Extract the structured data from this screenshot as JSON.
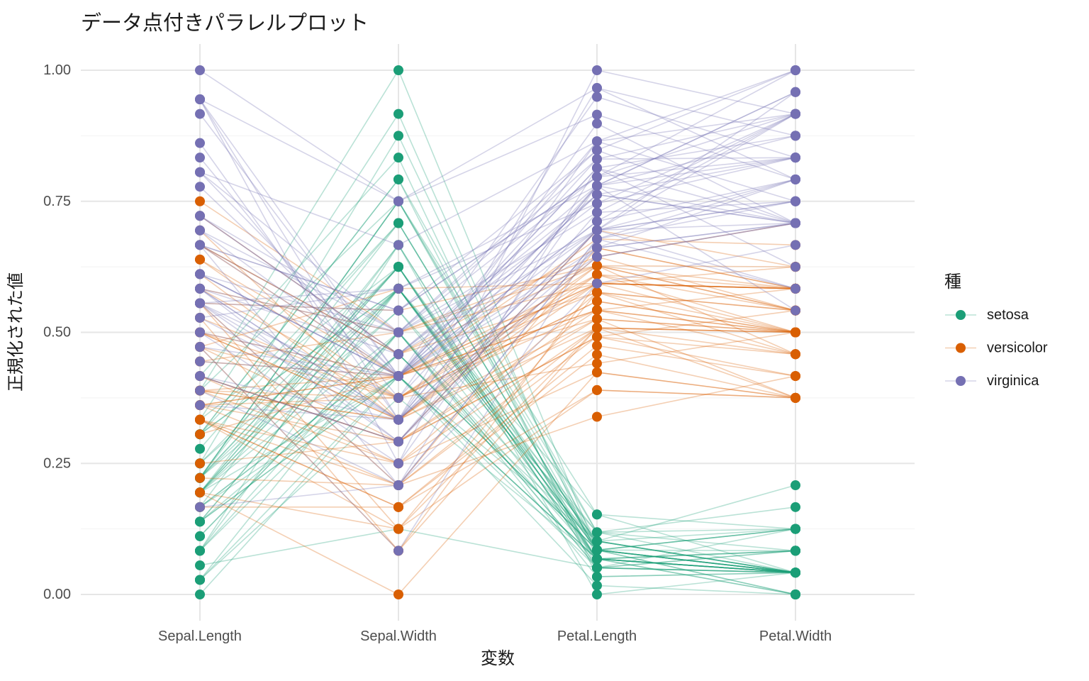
{
  "chart_data": {
    "type": "line",
    "subtype": "parallel-coordinates",
    "title": "データ点付きパラレルプロット",
    "xlabel": "変数",
    "ylabel": "正規化された値",
    "legend_title": "種",
    "legend_position": "right",
    "grid": true,
    "categories": [
      "Sepal.Length",
      "Sepal.Width",
      "Petal.Length",
      "Petal.Width"
    ],
    "yticks": [
      0,
      0.25,
      0.5,
      0.75,
      1
    ],
    "ytick_labels": [
      "0.00",
      "0.25",
      "0.50",
      "0.75",
      "1.00"
    ],
    "ylim": [
      0,
      1
    ],
    "normalization": "min-max per variable",
    "variable_ranges": {
      "Sepal.Length": [
        4.3,
        7.9
      ],
      "Sepal.Width": [
        2.0,
        4.4
      ],
      "Petal.Length": [
        1.0,
        6.9
      ],
      "Petal.Width": [
        0.1,
        2.5
      ]
    },
    "line_alpha": 0.3,
    "series": [
      {
        "name": "setosa",
        "color": "#1B9E77",
        "rows": [
          [
            5.1,
            3.5,
            1.4,
            0.2
          ],
          [
            4.9,
            3.0,
            1.4,
            0.2
          ],
          [
            4.7,
            3.2,
            1.3,
            0.2
          ],
          [
            4.6,
            3.1,
            1.5,
            0.2
          ],
          [
            5.0,
            3.6,
            1.4,
            0.2
          ],
          [
            5.4,
            3.9,
            1.7,
            0.4
          ],
          [
            4.6,
            3.4,
            1.4,
            0.3
          ],
          [
            5.0,
            3.4,
            1.5,
            0.2
          ],
          [
            4.4,
            2.9,
            1.4,
            0.2
          ],
          [
            4.9,
            3.1,
            1.5,
            0.1
          ],
          [
            5.4,
            3.7,
            1.5,
            0.2
          ],
          [
            4.8,
            3.4,
            1.6,
            0.2
          ],
          [
            4.8,
            3.0,
            1.4,
            0.1
          ],
          [
            4.3,
            3.0,
            1.1,
            0.1
          ],
          [
            5.8,
            4.0,
            1.2,
            0.2
          ],
          [
            5.7,
            4.4,
            1.5,
            0.4
          ],
          [
            5.4,
            3.9,
            1.3,
            0.4
          ],
          [
            5.1,
            3.5,
            1.4,
            0.3
          ],
          [
            5.7,
            3.8,
            1.7,
            0.3
          ],
          [
            5.1,
            3.8,
            1.5,
            0.3
          ],
          [
            5.4,
            3.4,
            1.7,
            0.2
          ],
          [
            5.1,
            3.7,
            1.5,
            0.4
          ],
          [
            4.6,
            3.6,
            1.0,
            0.2
          ],
          [
            5.1,
            3.3,
            1.7,
            0.5
          ],
          [
            4.8,
            3.4,
            1.9,
            0.2
          ],
          [
            5.0,
            3.0,
            1.6,
            0.2
          ],
          [
            5.0,
            3.4,
            1.6,
            0.4
          ],
          [
            5.2,
            3.5,
            1.5,
            0.2
          ],
          [
            5.2,
            3.4,
            1.4,
            0.2
          ],
          [
            4.7,
            3.2,
            1.6,
            0.2
          ],
          [
            4.8,
            3.1,
            1.6,
            0.2
          ],
          [
            5.4,
            3.4,
            1.5,
            0.4
          ],
          [
            5.2,
            4.1,
            1.5,
            0.1
          ],
          [
            5.5,
            4.2,
            1.4,
            0.2
          ],
          [
            4.9,
            3.1,
            1.5,
            0.2
          ],
          [
            5.0,
            3.2,
            1.2,
            0.2
          ],
          [
            5.5,
            3.5,
            1.3,
            0.2
          ],
          [
            4.9,
            3.6,
            1.4,
            0.1
          ],
          [
            4.4,
            3.0,
            1.3,
            0.2
          ],
          [
            5.1,
            3.4,
            1.5,
            0.2
          ],
          [
            5.0,
            3.5,
            1.3,
            0.3
          ],
          [
            4.5,
            2.3,
            1.3,
            0.3
          ],
          [
            4.4,
            3.2,
            1.3,
            0.2
          ],
          [
            5.0,
            3.5,
            1.6,
            0.6
          ],
          [
            5.1,
            3.8,
            1.9,
            0.4
          ],
          [
            4.8,
            3.0,
            1.4,
            0.3
          ],
          [
            5.1,
            3.8,
            1.6,
            0.2
          ],
          [
            4.6,
            3.2,
            1.4,
            0.2
          ],
          [
            5.3,
            3.7,
            1.5,
            0.2
          ],
          [
            5.0,
            3.3,
            1.4,
            0.2
          ]
        ]
      },
      {
        "name": "versicolor",
        "color": "#D95F02",
        "rows": [
          [
            7.0,
            3.2,
            4.7,
            1.4
          ],
          [
            6.4,
            3.2,
            4.5,
            1.5
          ],
          [
            6.9,
            3.1,
            4.9,
            1.5
          ],
          [
            5.5,
            2.3,
            4.0,
            1.3
          ],
          [
            6.5,
            2.8,
            4.6,
            1.5
          ],
          [
            5.7,
            2.8,
            4.5,
            1.3
          ],
          [
            6.3,
            3.3,
            4.7,
            1.6
          ],
          [
            4.9,
            2.4,
            3.3,
            1.0
          ],
          [
            6.6,
            2.9,
            4.6,
            1.3
          ],
          [
            5.2,
            2.7,
            3.9,
            1.4
          ],
          [
            5.0,
            2.0,
            3.5,
            1.0
          ],
          [
            5.9,
            3.0,
            4.2,
            1.5
          ],
          [
            6.0,
            2.2,
            4.0,
            1.0
          ],
          [
            6.1,
            2.9,
            4.7,
            1.4
          ],
          [
            5.6,
            2.9,
            3.6,
            1.3
          ],
          [
            6.7,
            3.1,
            4.4,
            1.4
          ],
          [
            5.6,
            3.0,
            4.5,
            1.5
          ],
          [
            5.8,
            2.7,
            4.1,
            1.0
          ],
          [
            6.2,
            2.2,
            4.5,
            1.5
          ],
          [
            5.6,
            2.5,
            3.9,
            1.1
          ],
          [
            5.9,
            3.2,
            4.8,
            1.8
          ],
          [
            6.1,
            2.8,
            4.0,
            1.3
          ],
          [
            6.3,
            2.5,
            4.9,
            1.5
          ],
          [
            6.1,
            2.8,
            4.7,
            1.2
          ],
          [
            6.4,
            2.9,
            4.3,
            1.3
          ],
          [
            6.6,
            3.0,
            4.4,
            1.4
          ],
          [
            6.8,
            2.8,
            4.8,
            1.4
          ],
          [
            6.7,
            3.0,
            5.0,
            1.7
          ],
          [
            6.0,
            2.9,
            4.5,
            1.5
          ],
          [
            5.7,
            2.6,
            3.5,
            1.0
          ],
          [
            5.5,
            2.4,
            3.8,
            1.1
          ],
          [
            5.5,
            2.4,
            3.7,
            1.0
          ],
          [
            5.8,
            2.7,
            3.9,
            1.2
          ],
          [
            6.0,
            2.7,
            5.1,
            1.6
          ],
          [
            5.4,
            3.0,
            4.5,
            1.5
          ],
          [
            6.0,
            3.4,
            4.5,
            1.6
          ],
          [
            6.7,
            3.1,
            4.7,
            1.5
          ],
          [
            6.3,
            2.3,
            4.4,
            1.3
          ],
          [
            5.6,
            3.0,
            4.1,
            1.3
          ],
          [
            5.5,
            2.5,
            4.0,
            1.3
          ],
          [
            5.5,
            2.6,
            4.4,
            1.2
          ],
          [
            6.1,
            3.0,
            4.6,
            1.4
          ],
          [
            5.8,
            2.6,
            4.0,
            1.2
          ],
          [
            5.0,
            2.3,
            3.3,
            1.0
          ],
          [
            5.6,
            2.7,
            4.2,
            1.3
          ],
          [
            5.7,
            3.0,
            4.2,
            1.2
          ],
          [
            5.7,
            2.9,
            4.2,
            1.3
          ],
          [
            6.2,
            2.9,
            4.3,
            1.3
          ],
          [
            5.1,
            2.5,
            3.0,
            1.1
          ],
          [
            5.7,
            2.8,
            4.1,
            1.3
          ]
        ]
      },
      {
        "name": "virginica",
        "color": "#7570B3",
        "rows": [
          [
            6.3,
            3.3,
            6.0,
            2.5
          ],
          [
            5.8,
            2.7,
            5.1,
            1.9
          ],
          [
            7.1,
            3.0,
            5.9,
            2.1
          ],
          [
            6.3,
            2.9,
            5.6,
            1.8
          ],
          [
            6.5,
            3.0,
            5.8,
            2.2
          ],
          [
            7.6,
            3.0,
            6.6,
            2.1
          ],
          [
            4.9,
            2.5,
            4.5,
            1.7
          ],
          [
            7.3,
            2.9,
            6.3,
            1.8
          ],
          [
            6.7,
            2.5,
            5.8,
            1.8
          ],
          [
            7.2,
            3.6,
            6.1,
            2.5
          ],
          [
            6.5,
            3.2,
            5.1,
            2.0
          ],
          [
            6.4,
            2.7,
            5.3,
            1.9
          ],
          [
            6.8,
            3.0,
            5.5,
            2.1
          ],
          [
            5.7,
            2.5,
            5.0,
            2.0
          ],
          [
            5.8,
            2.8,
            5.1,
            2.4
          ],
          [
            6.4,
            3.2,
            5.3,
            2.3
          ],
          [
            6.5,
            3.0,
            5.5,
            1.8
          ],
          [
            7.7,
            3.8,
            6.7,
            2.2
          ],
          [
            7.7,
            2.6,
            6.9,
            2.3
          ],
          [
            6.0,
            2.2,
            5.0,
            1.5
          ],
          [
            6.9,
            3.2,
            5.7,
            2.3
          ],
          [
            5.6,
            2.8,
            4.9,
            2.0
          ],
          [
            7.7,
            2.8,
            6.7,
            2.0
          ],
          [
            6.3,
            2.7,
            4.9,
            1.8
          ],
          [
            6.7,
            3.3,
            5.7,
            2.1
          ],
          [
            7.2,
            3.2,
            6.0,
            1.8
          ],
          [
            6.2,
            2.8,
            4.8,
            1.8
          ],
          [
            6.1,
            3.0,
            4.9,
            1.8
          ],
          [
            6.4,
            2.8,
            5.6,
            2.1
          ],
          [
            7.2,
            3.0,
            5.8,
            1.6
          ],
          [
            7.4,
            2.8,
            6.1,
            1.9
          ],
          [
            7.9,
            3.8,
            6.4,
            2.0
          ],
          [
            6.4,
            2.8,
            5.6,
            2.2
          ],
          [
            6.3,
            2.8,
            5.1,
            1.5
          ],
          [
            6.1,
            2.6,
            5.6,
            1.4
          ],
          [
            7.7,
            3.0,
            6.1,
            2.3
          ],
          [
            6.3,
            3.4,
            5.6,
            2.4
          ],
          [
            6.4,
            3.1,
            5.5,
            1.8
          ],
          [
            6.0,
            3.0,
            4.8,
            1.8
          ],
          [
            6.9,
            3.1,
            5.4,
            2.1
          ],
          [
            6.7,
            3.1,
            5.6,
            2.4
          ],
          [
            6.9,
            3.1,
            5.1,
            2.3
          ],
          [
            5.8,
            2.7,
            5.1,
            1.9
          ],
          [
            6.8,
            3.2,
            5.9,
            2.3
          ],
          [
            6.7,
            3.3,
            5.7,
            2.5
          ],
          [
            6.7,
            3.0,
            5.2,
            2.3
          ],
          [
            6.3,
            2.5,
            5.0,
            1.9
          ],
          [
            6.5,
            3.0,
            5.2,
            2.0
          ],
          [
            6.2,
            3.4,
            5.4,
            2.3
          ],
          [
            5.9,
            3.0,
            5.1,
            1.8
          ]
        ]
      }
    ]
  }
}
